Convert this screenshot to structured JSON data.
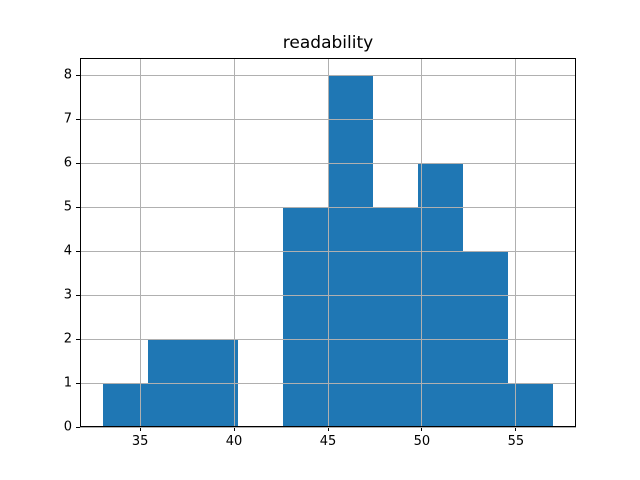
{
  "chart_data": {
    "type": "bar",
    "subtype": "histogram",
    "title": "readability",
    "xlabel": "",
    "ylabel": "",
    "bin_edges": [
      33.0,
      35.4,
      37.8,
      40.2,
      42.6,
      45.0,
      47.4,
      49.8,
      52.2,
      54.6,
      57.0
    ],
    "values": [
      1,
      2,
      2,
      0,
      5,
      8,
      5,
      6,
      4,
      1
    ],
    "xlim": [
      31.8,
      58.2
    ],
    "ylim": [
      0,
      8.4
    ],
    "xticks": [
      35,
      40,
      45,
      50,
      55
    ],
    "yticks": [
      0,
      1,
      2,
      3,
      4,
      5,
      6,
      7,
      8
    ],
    "grid": true,
    "legend": false,
    "colors": {
      "bar": "#1f77b4",
      "grid": "#b0b0b0",
      "spine": "#000000",
      "text": "#000000",
      "background": "#ffffff"
    }
  }
}
